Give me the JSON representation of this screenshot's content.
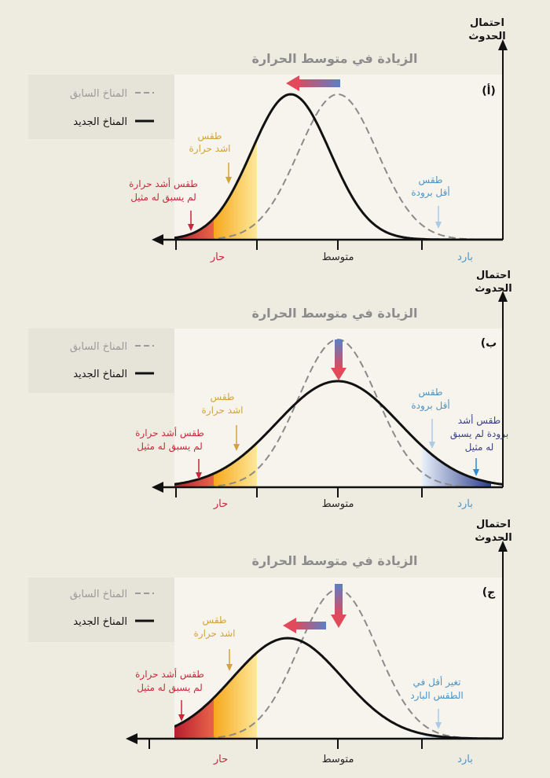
{
  "y_axis_label": {
    "line1": "احتمال",
    "line2": "الحدوث"
  },
  "x_labels": {
    "hot": "حار",
    "mean": "متوسط",
    "cold": "بارد"
  },
  "legend": {
    "previous": "المناخ السابق",
    "new": "المناخ الجديد"
  },
  "panel_a": {
    "title": "الزيادة في متوسط الحرارة",
    "letter": "(أ)",
    "hotter_weather": [
      "طقس",
      "اشد حرارة"
    ],
    "unprecedented_hot": [
      "طقس أشد حرارة",
      "لم يسبق له مثيل"
    ],
    "less_cold": [
      "طقس",
      "أقل برودة"
    ]
  },
  "panel_b": {
    "title": "الزيادة في متوسط الحرارة",
    "letter": "(ب",
    "hotter_weather": [
      "طقس",
      "اشد حرارة"
    ],
    "unprecedented_hot": [
      "طقس أشد حرارة",
      "لم يسبق له مثيل"
    ],
    "less_cold": [
      "طقس",
      "أقل برودة"
    ],
    "unprecedented_cold": [
      "طقس أشد",
      "برودة لم يسبق",
      "له مثيل"
    ]
  },
  "panel_c": {
    "title": "الزيادة في متوسط الحرارة",
    "letter": "(ج",
    "hotter_weather": [
      "طقس",
      "اشد حرارة"
    ],
    "unprecedented_hot": [
      "طقس أشد حرارة",
      "لم يسبق له مثيل"
    ],
    "less_change_cold": [
      "تغير أقل في",
      "الطقس البارد"
    ]
  },
  "colors": {
    "hot": "#c9283a",
    "warm": "#f5b92e",
    "cold_light": "#a9cbe6",
    "cold_dark": "#2b3d8c",
    "background": "#eeebe1",
    "plot_bg": "#f6f4ec"
  }
}
